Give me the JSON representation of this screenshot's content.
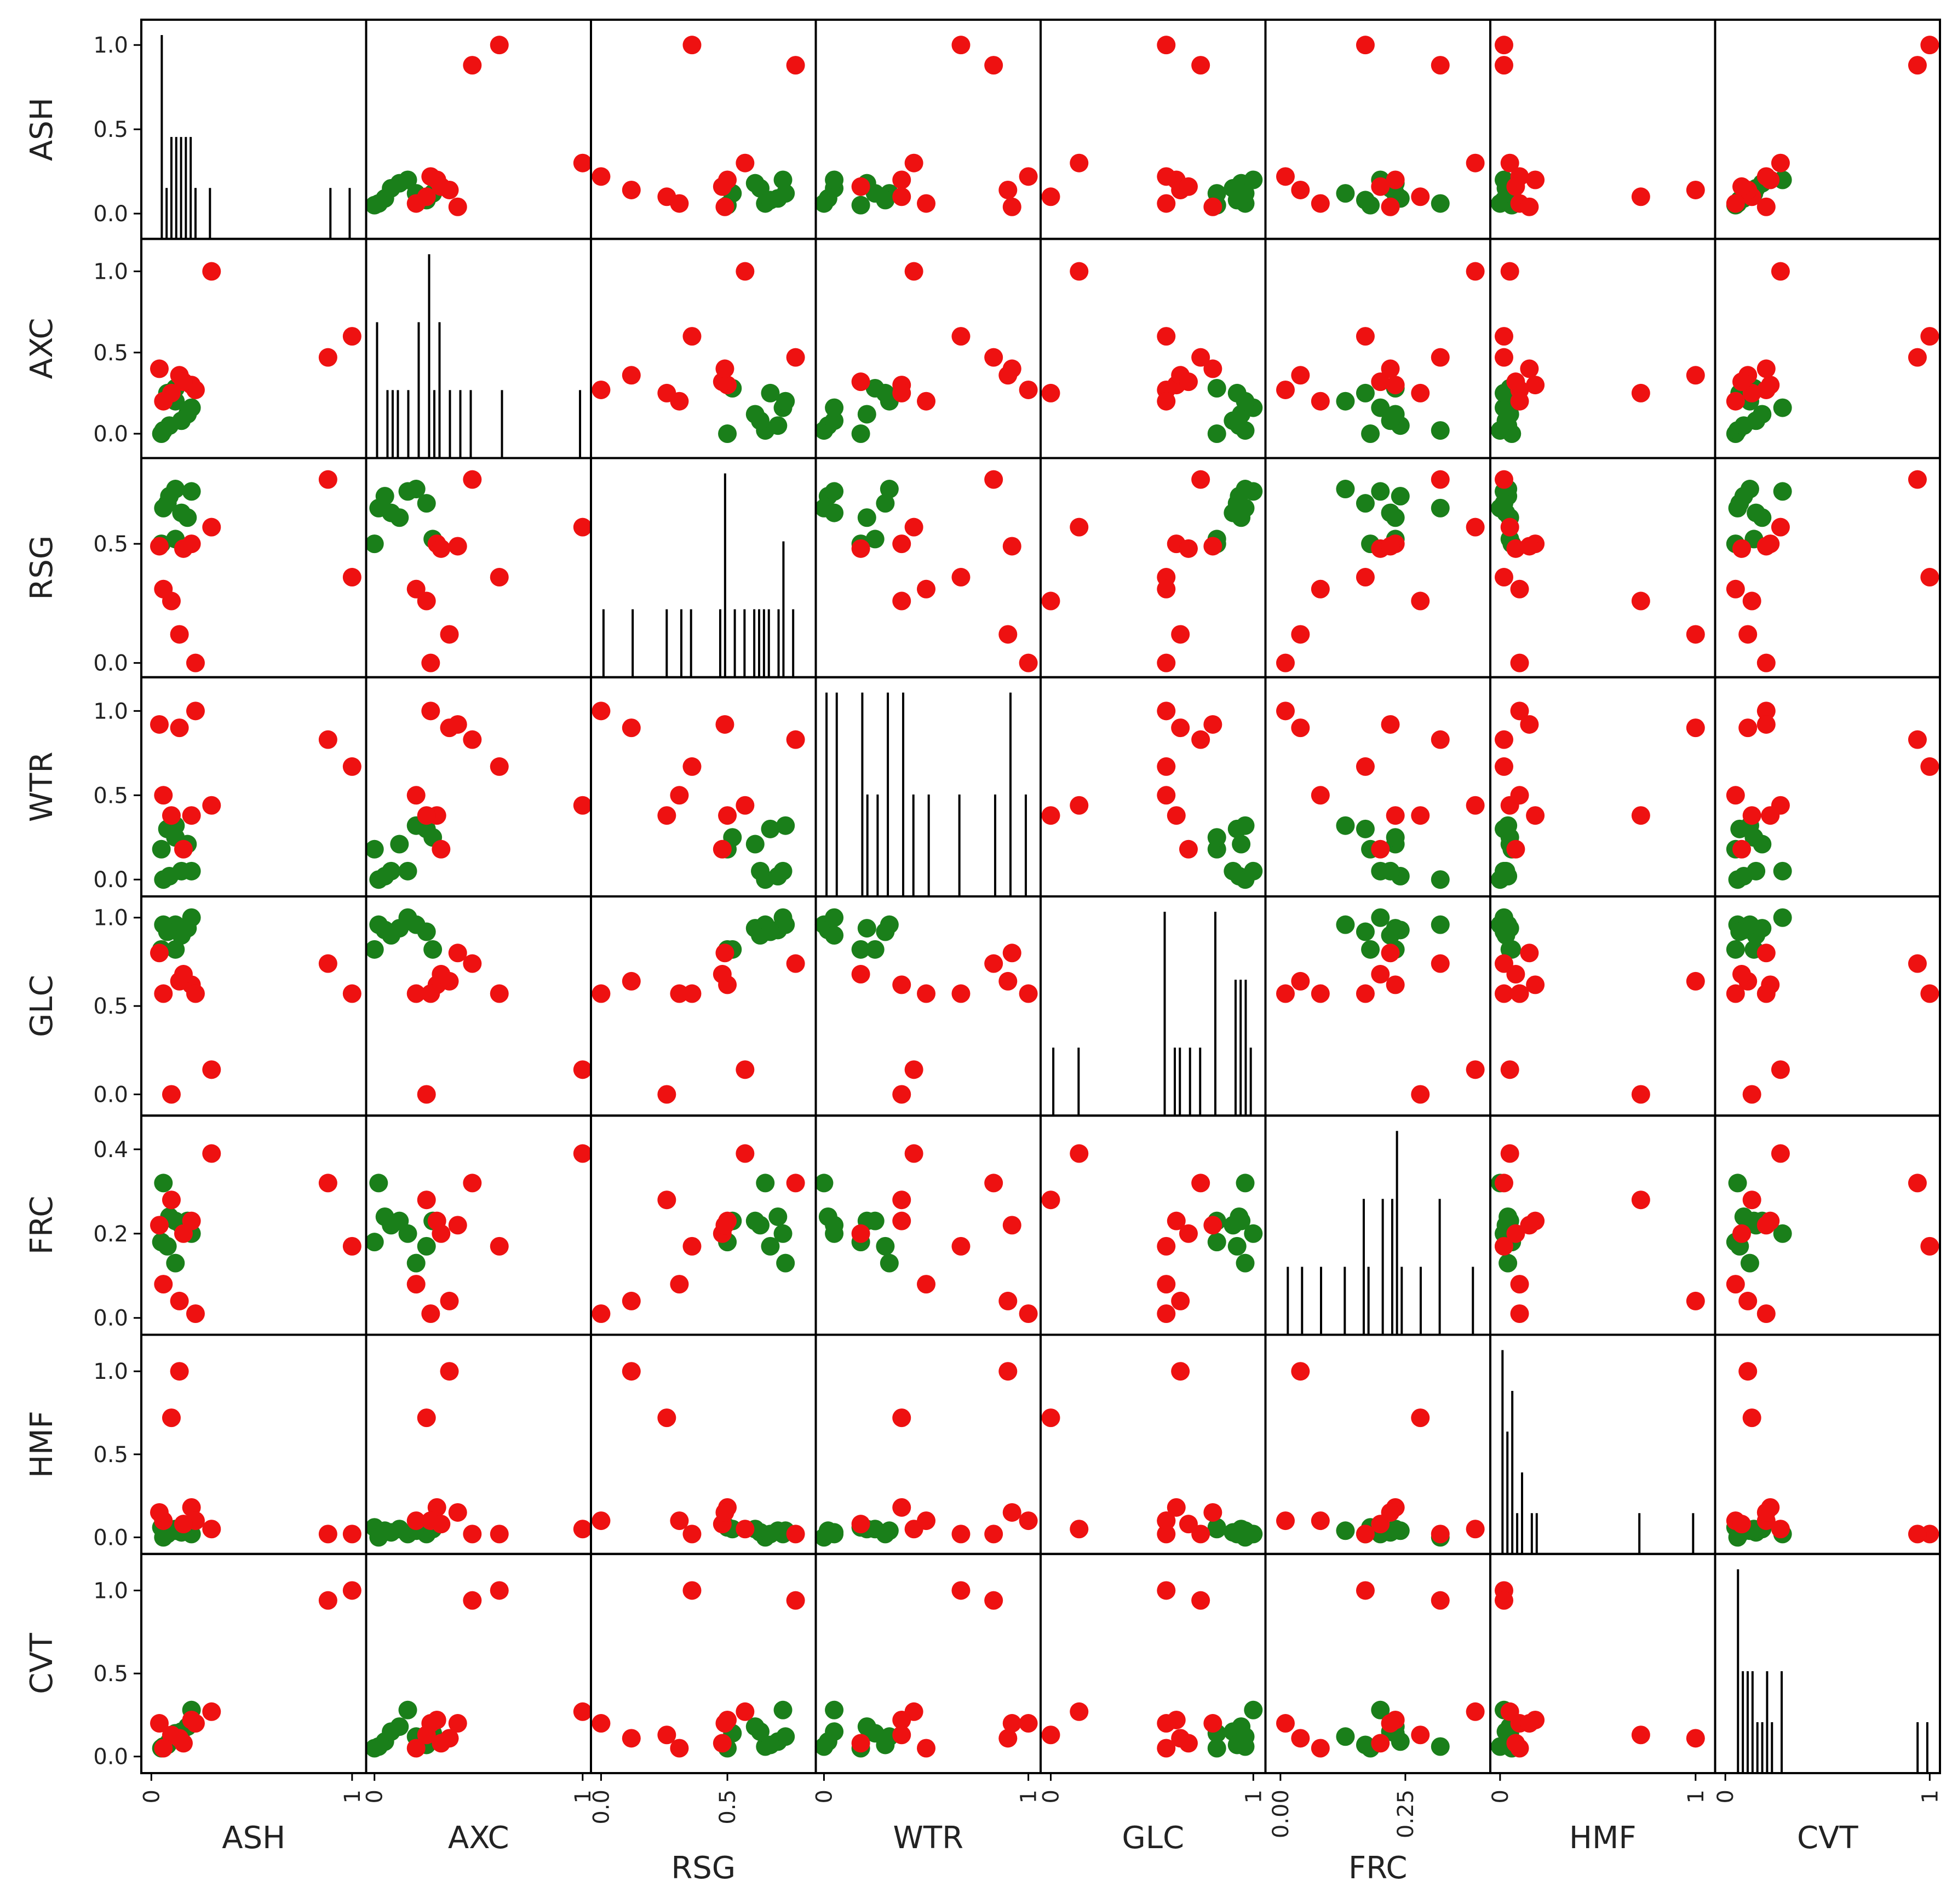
{
  "chart_data": {
    "type": "scatter-matrix",
    "title": "",
    "variables": [
      "ASH",
      "AXC",
      "RSG",
      "WTR",
      "GLC",
      "FRC",
      "HMF",
      "CVT"
    ],
    "colors": {
      "green": "#1a7f1a",
      "red": "#ee1111"
    },
    "axes": {
      "ASH": {
        "ylim": [
          -0.15,
          1.15
        ],
        "y_ticks": [
          "0.0",
          "0.5",
          "1.0"
        ],
        "xlim": [
          -0.05,
          1.07
        ],
        "x_ticks": [
          "0",
          "1"
        ]
      },
      "AXC": {
        "ylim": [
          -0.15,
          1.2
        ],
        "y_ticks": [
          "0.0",
          "0.5",
          "1.0"
        ],
        "xlim": [
          -0.04,
          1.04
        ],
        "x_ticks": [
          "0",
          "1"
        ]
      },
      "RSG": {
        "ylim": [
          -0.06,
          0.86
        ],
        "y_ticks": [
          "0.0",
          "0.5"
        ],
        "xlim": [
          -0.04,
          0.85
        ],
        "x_ticks": [
          "0.0",
          "0.5"
        ]
      },
      "WTR": {
        "ylim": [
          -0.1,
          1.2
        ],
        "y_ticks": [
          "0.0",
          "0.5",
          "1.0"
        ],
        "xlim": [
          -0.04,
          1.06
        ],
        "x_ticks": [
          "0",
          "1"
        ]
      },
      "GLC": {
        "ylim": [
          -0.12,
          1.12
        ],
        "y_ticks": [
          "0.0",
          "0.5",
          "1.0"
        ],
        "xlim": [
          -0.05,
          1.06
        ],
        "x_ticks": [
          "0",
          "1"
        ]
      },
      "FRC": {
        "ylim": [
          -0.04,
          0.48
        ],
        "y_ticks": [
          "0.0",
          "0.2",
          "0.4"
        ],
        "xlim": [
          -0.03,
          0.42
        ],
        "x_ticks": [
          "0.00",
          "0.25"
        ]
      },
      "HMF": {
        "ylim": [
          -0.1,
          1.22
        ],
        "y_ticks": [
          "0.0",
          "0.5",
          "1.0"
        ],
        "xlim": [
          -0.05,
          1.1
        ],
        "x_ticks": [
          "0",
          "1"
        ]
      },
      "CVT": {
        "ylim": [
          -0.1,
          1.22
        ],
        "y_ticks": [
          "0.0",
          "0.5",
          "1.0"
        ],
        "xlim": [
          -0.05,
          1.05
        ],
        "x_ticks": [
          "0",
          "1"
        ]
      }
    },
    "points": [
      {
        "class": "green",
        "ASH": 0.05,
        "AXC": 0.0,
        "RSG": 0.5,
        "WTR": 0.18,
        "GLC": 0.82,
        "FRC": 0.18,
        "HMF": 0.06,
        "CVT": 0.05
      },
      {
        "class": "green",
        "ASH": 0.06,
        "AXC": 0.02,
        "RSG": 0.65,
        "WTR": 0.0,
        "GLC": 0.96,
        "FRC": 0.32,
        "HMF": 0.0,
        "CVT": 0.06
      },
      {
        "class": "green",
        "ASH": 0.09,
        "AXC": 0.05,
        "RSG": 0.7,
        "WTR": 0.02,
        "GLC": 0.93,
        "FRC": 0.24,
        "HMF": 0.04,
        "CVT": 0.09
      },
      {
        "class": "green",
        "ASH": 0.15,
        "AXC": 0.08,
        "RSG": 0.63,
        "WTR": 0.05,
        "GLC": 0.9,
        "FRC": 0.22,
        "HMF": 0.03,
        "CVT": 0.15
      },
      {
        "class": "green",
        "ASH": 0.18,
        "AXC": 0.12,
        "RSG": 0.61,
        "WTR": 0.21,
        "GLC": 0.94,
        "FRC": 0.23,
        "HMF": 0.05,
        "CVT": 0.18
      },
      {
        "class": "green",
        "ASH": 0.2,
        "AXC": 0.16,
        "RSG": 0.72,
        "WTR": 0.05,
        "GLC": 1.0,
        "FRC": 0.2,
        "HMF": 0.02,
        "CVT": 0.28
      },
      {
        "class": "green",
        "ASH": 0.12,
        "AXC": 0.2,
        "RSG": 0.73,
        "WTR": 0.32,
        "GLC": 0.96,
        "FRC": 0.13,
        "HMF": 0.04,
        "CVT": 0.12
      },
      {
        "class": "green",
        "ASH": 0.08,
        "AXC": 0.25,
        "RSG": 0.67,
        "WTR": 0.3,
        "GLC": 0.92,
        "FRC": 0.17,
        "HMF": 0.02,
        "CVT": 0.07
      },
      {
        "class": "green",
        "ASH": 0.12,
        "AXC": 0.28,
        "RSG": 0.52,
        "WTR": 0.25,
        "GLC": 0.82,
        "FRC": 0.23,
        "HMF": 0.05,
        "CVT": 0.14
      },
      {
        "class": "red",
        "ASH": 1.0,
        "AXC": 0.6,
        "RSG": 0.36,
        "WTR": 0.67,
        "GLC": 0.57,
        "FRC": 0.17,
        "HMF": 0.02,
        "CVT": 1.0
      },
      {
        "class": "red",
        "ASH": 0.88,
        "AXC": 0.47,
        "RSG": 0.77,
        "WTR": 0.83,
        "GLC": 0.74,
        "FRC": 0.32,
        "HMF": 0.02,
        "CVT": 0.94
      },
      {
        "class": "red",
        "ASH": 0.3,
        "AXC": 1.0,
        "RSG": 0.57,
        "WTR": 0.44,
        "GLC": 0.14,
        "FRC": 0.39,
        "HMF": 0.05,
        "CVT": 0.27
      },
      {
        "class": "red",
        "ASH": 0.2,
        "AXC": 0.3,
        "RSG": 0.5,
        "WTR": 0.38,
        "GLC": 0.62,
        "FRC": 0.23,
        "HMF": 0.18,
        "CVT": 0.22
      },
      {
        "class": "red",
        "ASH": 0.22,
        "AXC": 0.27,
        "RSG": 0.0,
        "WTR": 1.0,
        "GLC": 0.57,
        "FRC": 0.01,
        "HMF": 0.1,
        "CVT": 0.2
      },
      {
        "class": "red",
        "ASH": 0.1,
        "AXC": 0.25,
        "RSG": 0.26,
        "WTR": 0.38,
        "GLC": 0.0,
        "FRC": 0.28,
        "HMF": 0.72,
        "CVT": 0.13
      },
      {
        "class": "red",
        "ASH": 0.14,
        "AXC": 0.36,
        "RSG": 0.12,
        "WTR": 0.9,
        "GLC": 0.64,
        "FRC": 0.04,
        "HMF": 1.0,
        "CVT": 0.11
      },
      {
        "class": "red",
        "ASH": 0.06,
        "AXC": 0.2,
        "RSG": 0.31,
        "WTR": 0.5,
        "GLC": 0.57,
        "FRC": 0.08,
        "HMF": 0.1,
        "CVT": 0.05
      },
      {
        "class": "red",
        "ASH": 0.16,
        "AXC": 0.32,
        "RSG": 0.48,
        "WTR": 0.18,
        "GLC": 0.68,
        "FRC": 0.2,
        "HMF": 0.08,
        "CVT": 0.08
      },
      {
        "class": "red",
        "ASH": 0.04,
        "AXC": 0.4,
        "RSG": 0.49,
        "WTR": 0.92,
        "GLC": 0.8,
        "FRC": 0.22,
        "HMF": 0.15,
        "CVT": 0.2
      }
    ]
  }
}
